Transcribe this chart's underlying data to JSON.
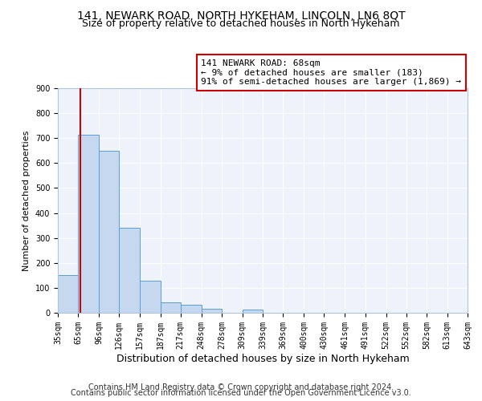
{
  "title1": "141, NEWARK ROAD, NORTH HYKEHAM, LINCOLN, LN6 8QT",
  "title2": "Size of property relative to detached houses in North Hykeham",
  "xlabel": "Distribution of detached houses by size in North Hykeham",
  "ylabel": "Number of detached properties",
  "bar_edges": [
    35,
    65,
    96,
    126,
    157,
    187,
    217,
    248,
    278,
    309,
    339,
    369,
    400,
    430,
    461,
    491,
    522,
    552,
    582,
    613,
    643
  ],
  "bar_heights": [
    150,
    715,
    650,
    340,
    130,
    43,
    33,
    15,
    0,
    12,
    0,
    0,
    0,
    0,
    0,
    0,
    0,
    0,
    0,
    0
  ],
  "bar_color": "#c5d8f0",
  "bar_edgecolor": "#5a9fd4",
  "red_line_x": 68,
  "red_line_color": "#cc0000",
  "annotation_line1": "141 NEWARK ROAD: 68sqm",
  "annotation_line2": "← 9% of detached houses are smaller (183)",
  "annotation_line3": "91% of semi-detached houses are larger (1,869) →",
  "annotation_box_color": "#cc0000",
  "ylim": [
    0,
    900
  ],
  "yticks": [
    0,
    100,
    200,
    300,
    400,
    500,
    600,
    700,
    800,
    900
  ],
  "background_color": "#eef3fb",
  "grid_color": "#ffffff",
  "footer1": "Contains HM Land Registry data © Crown copyright and database right 2024.",
  "footer2": "Contains public sector information licensed under the Open Government Licence v3.0.",
  "title1_fontsize": 10,
  "title2_fontsize": 9,
  "xlabel_fontsize": 9,
  "ylabel_fontsize": 8,
  "tick_fontsize": 7,
  "annotation_fontsize": 8,
  "footer_fontsize": 7
}
